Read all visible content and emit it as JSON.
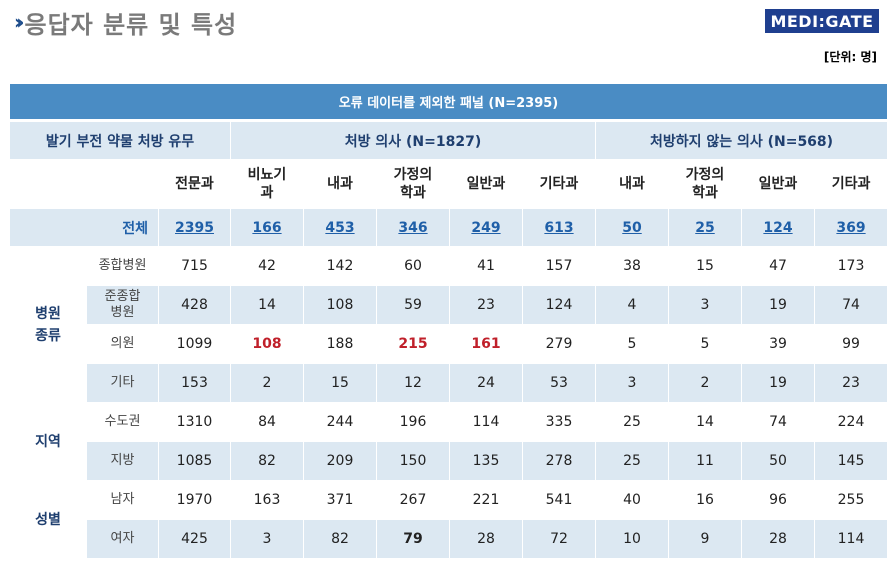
{
  "header": {
    "title": "응답자 분류 및 특성",
    "logo": "MEDI:GATE",
    "unit": "[단위: 명]"
  },
  "table": {
    "banner": "오류 데이터를 제외한 패널 (N=2395)",
    "group_left": "발기 부전 약물 처방 유무",
    "group_prescribe": "처방 의사 (N=1827)",
    "group_no_prescribe": "처방하지 않는 의사 (N=568)",
    "columns": [
      "전문과",
      "비뇨기과",
      "내과",
      "가정의학과",
      "일반과",
      "기타과",
      "내과",
      "가정의학과",
      "일반과",
      "기타과"
    ],
    "total": {
      "label": "전체",
      "values": [
        "2395",
        "166",
        "453",
        "346",
        "249",
        "613",
        "50",
        "25",
        "124",
        "369"
      ]
    },
    "categories": [
      {
        "name": "병원\n종류",
        "rows": [
          {
            "label": "종합병원",
            "values": [
              "715",
              "42",
              "142",
              "60",
              "41",
              "157",
              "38",
              "15",
              "47",
              "173"
            ]
          },
          {
            "label": "준종합\n병원",
            "values": [
              "428",
              "14",
              "108",
              "59",
              "23",
              "124",
              "4",
              "3",
              "19",
              "74"
            ]
          },
          {
            "label": "의원",
            "values": [
              "1099",
              "108",
              "188",
              "215",
              "161",
              "279",
              "5",
              "5",
              "39",
              "99"
            ]
          },
          {
            "label": "기타",
            "values": [
              "153",
              "2",
              "15",
              "12",
              "24",
              "53",
              "3",
              "2",
              "19",
              "23"
            ]
          }
        ]
      },
      {
        "name": "지역",
        "rows": [
          {
            "label": "수도권",
            "values": [
              "1310",
              "84",
              "244",
              "196",
              "114",
              "335",
              "25",
              "14",
              "74",
              "224"
            ]
          },
          {
            "label": "지방",
            "values": [
              "1085",
              "82",
              "209",
              "150",
              "135",
              "278",
              "25",
              "11",
              "50",
              "145"
            ]
          }
        ]
      },
      {
        "name": "성별",
        "rows": [
          {
            "label": "남자",
            "values": [
              "1970",
              "163",
              "371",
              "267",
              "221",
              "541",
              "40",
              "16",
              "96",
              "255"
            ]
          },
          {
            "label": "여자",
            "values": [
              "425",
              "3",
              "82",
              "79",
              "28",
              "72",
              "10",
              "9",
              "28",
              "114"
            ]
          }
        ]
      }
    ],
    "highlights": {
      "red_color": "#c0202a",
      "accent": "#4a8cc4",
      "band": "#dce8f2"
    }
  }
}
